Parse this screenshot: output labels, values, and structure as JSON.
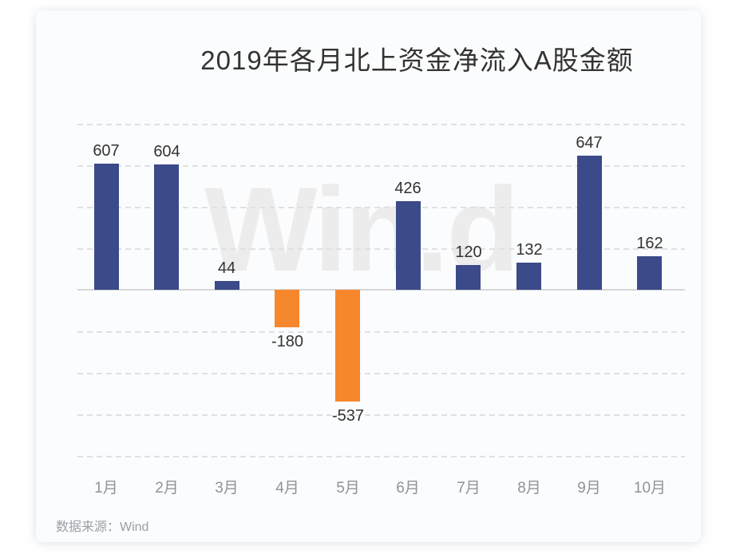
{
  "chart_data": {
    "type": "bar",
    "title": "2019年各月北上资金净流入A股金额",
    "categories": [
      "1月",
      "2月",
      "3月",
      "4月",
      "5月",
      "6月",
      "7月",
      "8月",
      "9月",
      "10月"
    ],
    "values": [
      607,
      604,
      44,
      -180,
      -537,
      426,
      120,
      132,
      647,
      162
    ],
    "ylim": [
      -800,
      800
    ],
    "grid_step": 200,
    "grid_style": "dashed",
    "legend_position": "none",
    "value_labels_shown": true,
    "bar_color_positive": "#3b4a89",
    "bar_color_negative": "#f7872d",
    "title_color": "#333333",
    "value_label_color": "#333333",
    "axis_label_color": "#8f939a",
    "gridline_color": "#e0e0e2",
    "watermark_color": "#ececec"
  },
  "watermark": {
    "text": "Win.d"
  },
  "source": {
    "label": "数据来源：Wind"
  }
}
